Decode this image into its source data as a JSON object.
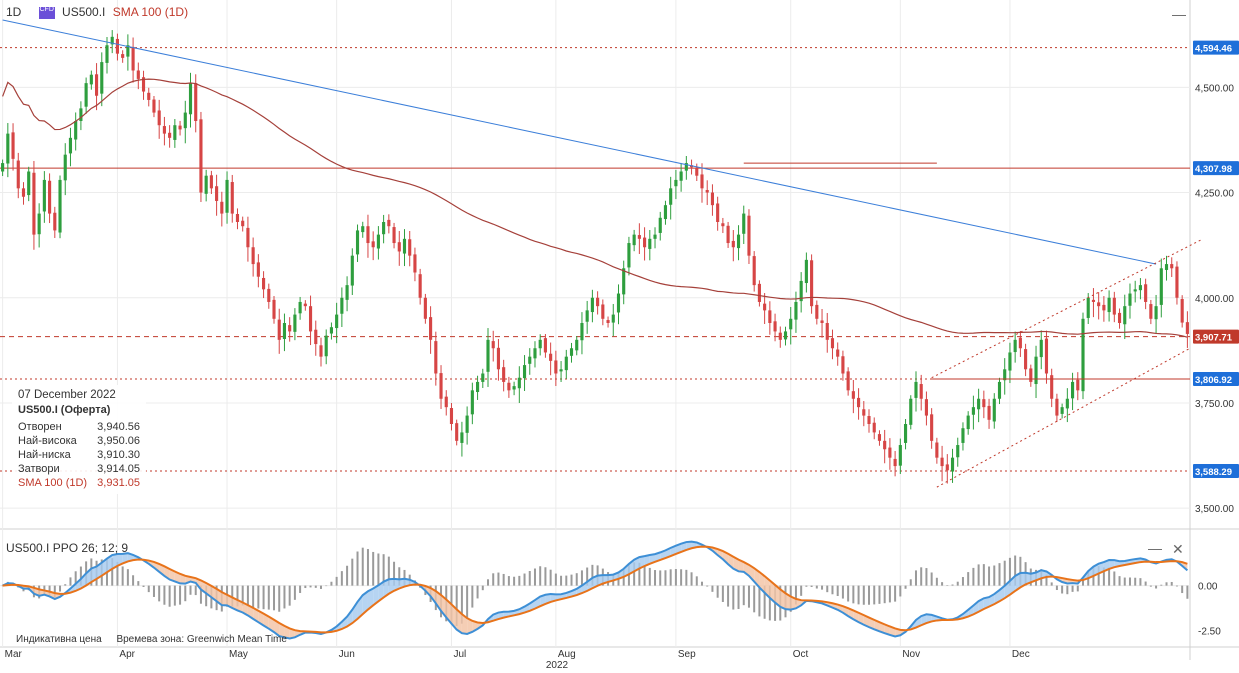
{
  "header": {
    "interval": "1D",
    "badge": "CFD",
    "symbol": "US500.I",
    "indicator": "SMA 100 (1D)"
  },
  "ppo_header": {
    "label": "US500.I  PPO 26; 12; 9"
  },
  "info_panel": {
    "date": "07 December 2022",
    "name": "US500.I (Оферта)",
    "rows": [
      {
        "label": "Отворен",
        "value": "3,940.56"
      },
      {
        "label": "Най-висока",
        "value": "3,950.06"
      },
      {
        "label": "Най-ниска",
        "value": "3,910.30"
      },
      {
        "label": "Затвори",
        "value": "3,914.05"
      }
    ],
    "sma_row": {
      "label": "SMA 100 (1D)",
      "value": "3,931.05"
    }
  },
  "footer": {
    "indicative": "Индикативна цена",
    "timezone": "Времева зона: Greenwich Mean Time"
  },
  "colors": {
    "up": "#2e9e3e",
    "down": "#d64545",
    "sma": "#a5403a",
    "trend": "#3c7fd9",
    "level": "#c0392b",
    "badge_current": "#c0392b",
    "badge_level": "#1e6fd9",
    "ppo_fast": "#3d8fd6",
    "ppo_slow": "#e8731a",
    "hist": "#9a9a9a"
  },
  "chart_data": [
    {
      "type": "candlestick",
      "title": "US500.I",
      "indicator": "SMA 100 (1D)",
      "ylim": [
        3460,
        4660
      ],
      "y_ticks": [
        "3,500.00",
        "3,750.00",
        "4,000.00",
        "4,250.00",
        "4,500.00"
      ],
      "y_tick_values": [
        3500,
        3750,
        4000,
        4250,
        4500
      ],
      "price_levels": [
        {
          "label": "4,594.46",
          "value": 4594.46,
          "style": "dotted"
        },
        {
          "label": "4,307.98",
          "value": 4307.98,
          "style": "solid"
        },
        {
          "label": "3,907.71",
          "value": 3907.71,
          "style": "dashed",
          "current": true
        },
        {
          "label": "3,806.92",
          "value": 3806.92,
          "style": "dotted"
        },
        {
          "label": "3,588.29",
          "value": 3588.29,
          "style": "dotted"
        }
      ],
      "x_month_labels": [
        "Mar",
        "Apr",
        "May",
        "Jun",
        "Jul",
        "Aug",
        "Sep",
        "Oct",
        "Nov",
        "Dec"
      ],
      "x_month_index": [
        0,
        22,
        43,
        64,
        86,
        106,
        129,
        151,
        172,
        193
      ],
      "x_year_label": "2022",
      "x_year_index": 106,
      "last_close": 3914.05,
      "closes": [
        4320,
        4390,
        4330,
        4260,
        4240,
        4300,
        4150,
        4200,
        4280,
        4200,
        4160,
        4280,
        4340,
        4380,
        4420,
        4450,
        4510,
        4530,
        4480,
        4560,
        4600,
        4620,
        4580,
        4570,
        4600,
        4540,
        4520,
        4490,
        4470,
        4440,
        4410,
        4390,
        4380,
        4410,
        4400,
        4440,
        4510,
        4420,
        4250,
        4290,
        4260,
        4230,
        4200,
        4280,
        4200,
        4180,
        4170,
        4120,
        4080,
        4050,
        4020,
        3990,
        3950,
        3900,
        3940,
        3920,
        3960,
        3990,
        3980,
        3920,
        3890,
        3860,
        3910,
        3930,
        3960,
        4000,
        4030,
        4100,
        4160,
        4170,
        4130,
        4120,
        4150,
        4180,
        4170,
        4130,
        4110,
        4140,
        4100,
        4060,
        4000,
        3950,
        3900,
        3820,
        3760,
        3740,
        3700,
        3660,
        3680,
        3720,
        3780,
        3800,
        3820,
        3900,
        3880,
        3830,
        3800,
        3780,
        3790,
        3810,
        3840,
        3860,
        3880,
        3900,
        3870,
        3850,
        3820,
        3830,
        3860,
        3880,
        3900,
        3940,
        3970,
        4000,
        3980,
        3950,
        3940,
        3960,
        4010,
        4070,
        4130,
        4150,
        4140,
        4120,
        4140,
        4150,
        4190,
        4220,
        4260,
        4280,
        4300,
        4320,
        4310,
        4290,
        4260,
        4250,
        4220,
        4180,
        4170,
        4130,
        4120,
        4150,
        4200,
        4100,
        4030,
        3990,
        3970,
        3940,
        3920,
        3900,
        3920,
        3950,
        3990,
        4040,
        4090,
        3980,
        3950,
        3940,
        3900,
        3880,
        3860,
        3820,
        3780,
        3760,
        3740,
        3720,
        3700,
        3680,
        3660,
        3640,
        3620,
        3600,
        3650,
        3700,
        3760,
        3800,
        3760,
        3720,
        3660,
        3620,
        3600,
        3590,
        3620,
        3650,
        3690,
        3720,
        3740,
        3760,
        3740,
        3710,
        3760,
        3800,
        3830,
        3870,
        3900,
        3880,
        3830,
        3800,
        3860,
        3900,
        3820,
        3760,
        3720,
        3740,
        3760,
        3800,
        3780,
        3950,
        4000,
        3990,
        3980,
        3970,
        4000,
        3960,
        3940,
        3980,
        4010,
        4020,
        4030,
        3990,
        3950,
        3980,
        4070,
        4080,
        4070,
        4000,
        3941,
        3914
      ]
    },
    {
      "type": "line",
      "title": "US500.I PPO 26; 12; 9",
      "series": [
        {
          "name": "PPO 26; 12; 9"
        },
        {
          "name": "Signal"
        }
      ],
      "ylim": [
        -3.3,
        2.7
      ],
      "y_ticks": [
        "-2.50",
        "0.00"
      ],
      "y_tick_values": [
        -2.5,
        0
      ]
    }
  ]
}
